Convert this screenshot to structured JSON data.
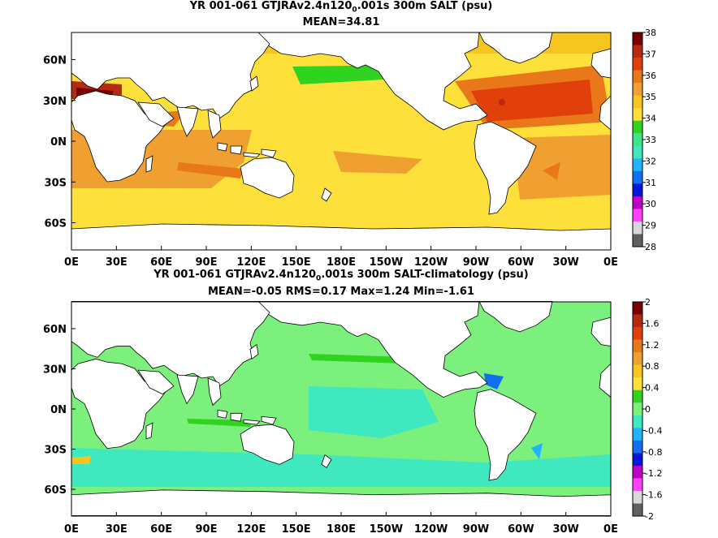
{
  "chart_data": [
    {
      "type": "heatmap",
      "title_parts": {
        "pre": "YR 001-061 GTJRAv2.4n120",
        "sub": "0",
        "post": ".001s 300m SALT (psu)"
      },
      "subtitle": "MEAN=34.81",
      "xticks": [
        "0E",
        "30E",
        "60E",
        "90E",
        "120E",
        "150E",
        "180E",
        "150W",
        "120W",
        "90W",
        "60W",
        "30W",
        "0E"
      ],
      "yticks": [
        "60N",
        "30N",
        "0N",
        "30S",
        "60S"
      ],
      "colorbar": {
        "ticks": [
          "38",
          "37",
          "36",
          "35",
          "34",
          "33",
          "32",
          "31",
          "30",
          "29",
          "28"
        ],
        "colors": [
          "#7a0000",
          "#b52a10",
          "#e2400a",
          "#e8781a",
          "#f0a030",
          "#f7c520",
          "#fde03a",
          "#30d420",
          "#3de68a",
          "#40e8c0",
          "#20b4ff",
          "#1070f0",
          "#0018d8",
          "#c000c8",
          "#ff40ff",
          "#d8d8d8",
          "#606060"
        ]
      },
      "ylim": [
        -80,
        80
      ],
      "xlim": [
        0,
        360
      ]
    },
    {
      "type": "heatmap",
      "title_parts": {
        "pre": "YR 001-061 GTJRAv2.4n120",
        "sub": "0",
        "post": ".001s 300m SALT-climatology (psu)"
      },
      "subtitle": "MEAN=-0.05   RMS=0.17   Max=1.24   Min=-1.61",
      "xticks": [
        "0E",
        "30E",
        "60E",
        "90E",
        "120E",
        "150E",
        "180E",
        "150W",
        "120W",
        "90W",
        "60W",
        "30W",
        "0E"
      ],
      "yticks": [
        "60N",
        "30N",
        "0N",
        "30S",
        "60S"
      ],
      "colorbar": {
        "ticks": [
          "2",
          "1.6",
          "1.2",
          "0.8",
          "0.4",
          "0",
          "-0.4",
          "-0.8",
          "-1.2",
          "-1.6",
          "-2"
        ],
        "colors": [
          "#7a0000",
          "#b52a10",
          "#e2400a",
          "#e8781a",
          "#f0a030",
          "#f7c520",
          "#fde03a",
          "#30d420",
          "#7cf07c",
          "#40e8c0",
          "#20b4ff",
          "#1070f0",
          "#0018d8",
          "#c000c8",
          "#ff40ff",
          "#d8d8d8",
          "#606060"
        ]
      },
      "ylim": [
        -80,
        80
      ],
      "xlim": [
        0,
        360
      ]
    }
  ]
}
